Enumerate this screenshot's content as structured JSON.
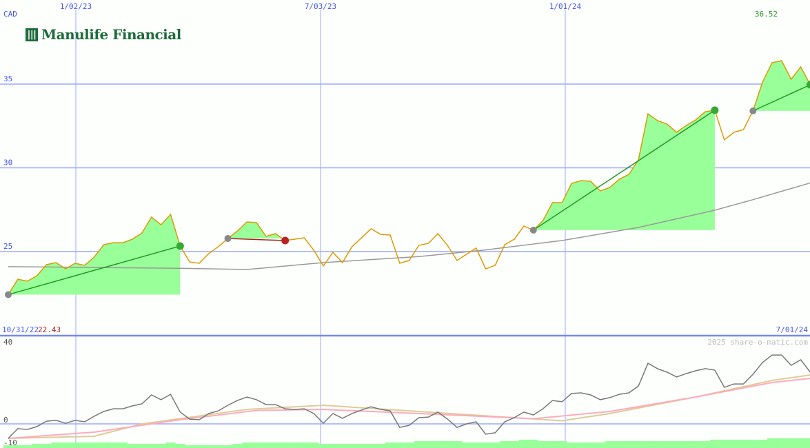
{
  "header": {
    "currency": "CAD",
    "company": "Manulife Financial",
    "last_price": "36.52",
    "start_date": "10/31/22",
    "start_price": "22.43",
    "end_date": "7/01/24",
    "copyright": "2025 share-o-matic.com"
  },
  "colors": {
    "grid": "#99aaff",
    "axis_text": "#4455ee",
    "price": "#dd9900",
    "ma_long": "#999999",
    "gain_fill": "#99ff99",
    "gain_line": "#229922",
    "loss_line": "#aa2222",
    "osc": "#777777",
    "osc_fast": "#ffaabb",
    "osc_slow": "#ddcc99",
    "volume": "#99ff99"
  },
  "chart_data": [
    {
      "type": "line",
      "title": "",
      "x_start": "10/31/22",
      "x_end": "7/01/24",
      "x_step": "weekly",
      "x_ticks": [
        "1/02/23",
        "7/03/23",
        "1/01/24"
      ],
      "y_ticks": [
        "25",
        "30",
        "35"
      ],
      "ylim": [
        22,
        37.5
      ],
      "grid": true,
      "series": [
        {
          "values": [
            22.43,
            23.35,
            23.23,
            23.56,
            24.22,
            24.34,
            23.97,
            24.3,
            24.18,
            24.67,
            25.41,
            25.53,
            25.53,
            25.74,
            26.11,
            27.06,
            26.6,
            27.22,
            25.33,
            24.38,
            24.3,
            24.88,
            25.29,
            25.78,
            26.23,
            26.77,
            26.73,
            25.91,
            26.07,
            25.66,
            25.74,
            25.82,
            25.08,
            24.14,
            24.96,
            24.34,
            25.29,
            25.82,
            26.36,
            26.03,
            25.99,
            24.3,
            24.47,
            25.37,
            25.49,
            26.07,
            25.37,
            24.47,
            24.84,
            25.21,
            23.97,
            24.18,
            25.41,
            25.74,
            26.52,
            26.28,
            26.85,
            27.92,
            27.92,
            29.07,
            29.24,
            29.2,
            28.62,
            28.83,
            29.32,
            29.61,
            30.47,
            33.23,
            32.82,
            32.61,
            32.12,
            32.53,
            32.86,
            33.35,
            33.44,
            31.67,
            32.12,
            32.28,
            33.4,
            35.12,
            36.28,
            36.4,
            35.29,
            36.03,
            34.96,
            36.52
          ]
        },
        {
          "values_at_index": [
            [
              0,
              24.1
            ],
            [
              18,
              24.0
            ],
            [
              25,
              23.93
            ],
            [
              33,
              24.34
            ],
            [
              43,
              24.7
            ],
            [
              50,
              25.1
            ],
            [
              58,
              25.66
            ],
            [
              66,
              26.44
            ],
            [
              74,
              27.47
            ],
            [
              78,
              28.1
            ],
            [
              84,
              29.1
            ]
          ]
        }
      ],
      "signals": [
        {
          "buy_index": 0,
          "sell_index": 18,
          "result": "gain"
        },
        {
          "buy_index": 23,
          "sell_index": 29,
          "result": "loss"
        },
        {
          "buy_index": 55,
          "sell_index": 74,
          "result": "gain"
        },
        {
          "buy_index": 78,
          "sell_index": 84,
          "result": "gain"
        }
      ]
    },
    {
      "type": "line",
      "title": "",
      "y_ticks": [
        "40",
        "0",
        "-10"
      ],
      "ylim": [
        -10,
        40
      ],
      "series": [
        {
          "values": [
            -7,
            -2.3,
            -2.7,
            -1.3,
            1.3,
            1.7,
            0.3,
            1.7,
            1,
            3.7,
            6,
            7.3,
            7.3,
            8.7,
            9.7,
            14,
            11.7,
            14.3,
            5.7,
            2.3,
            2,
            5,
            6.3,
            9,
            11.3,
            13,
            11.7,
            9.3,
            9.3,
            7.3,
            7,
            7.3,
            5,
            0.3,
            5,
            2.7,
            5,
            6.7,
            8.3,
            7,
            6.3,
            -1.7,
            -0.7,
            3,
            3.3,
            5.7,
            2.3,
            -1.7,
            0,
            1,
            -5,
            -4.3,
            1,
            3,
            5.7,
            4.3,
            7.3,
            11.3,
            10.7,
            14.7,
            15,
            14,
            11.7,
            12.7,
            14.3,
            15,
            18.3,
            29.3,
            26.7,
            25,
            22.7,
            24.3,
            25.7,
            26.7,
            26,
            17.7,
            19.3,
            19.3,
            24,
            29.7,
            33.3,
            33.3,
            28.3,
            31,
            25,
            31
          ]
        },
        {
          "values_at_index": [
            [
              0,
              -7
            ],
            [
              9,
              -4
            ],
            [
              18,
              2
            ],
            [
              26,
              6.5
            ],
            [
              33,
              7
            ],
            [
              43,
              5
            ],
            [
              55,
              2.5
            ],
            [
              63,
              6
            ],
            [
              72,
              13
            ],
            [
              80,
              20
            ],
            [
              86,
              23
            ]
          ]
        },
        {
          "values_at_index": [
            [
              0,
              -7
            ],
            [
              9,
              -6
            ],
            [
              14,
              0
            ],
            [
              25,
              7
            ],
            [
              33,
              9
            ],
            [
              43,
              6
            ],
            [
              58,
              1.5
            ],
            [
              63,
              5
            ],
            [
              72,
              13
            ],
            [
              80,
              21
            ],
            [
              86,
              25
            ]
          ]
        }
      ],
      "volume": [
        2,
        2,
        2,
        3,
        3,
        4,
        4,
        4,
        4,
        4,
        4,
        4,
        4,
        3,
        3,
        3,
        3,
        4,
        3,
        2,
        2,
        2,
        2,
        2,
        3,
        4,
        4,
        4,
        4,
        4,
        4,
        4,
        4,
        3,
        3,
        3,
        3,
        3,
        3,
        3,
        4,
        4,
        4,
        5,
        5,
        5,
        5,
        5,
        4,
        4,
        4,
        4,
        5,
        5,
        6,
        6,
        5,
        5,
        5,
        4,
        4,
        4,
        4,
        5,
        5,
        5,
        5,
        5,
        5,
        5,
        5,
        5,
        5,
        5,
        6,
        6,
        6,
        6,
        6,
        6,
        7,
        7,
        7,
        7,
        7,
        8
      ]
    }
  ]
}
